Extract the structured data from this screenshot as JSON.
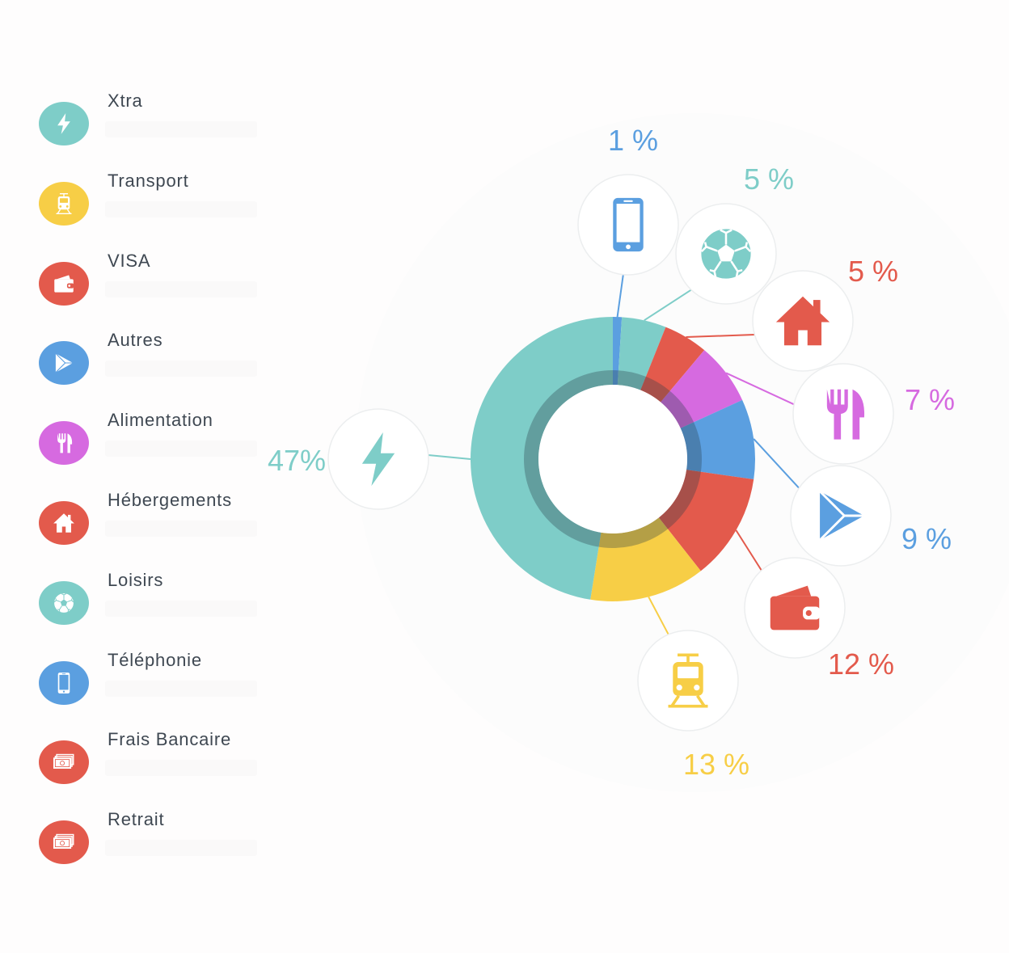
{
  "legend": [
    {
      "label": "Xtra",
      "icon": "bolt-icon",
      "color": "#7ecdc8"
    },
    {
      "label": "Transport",
      "icon": "tram-icon",
      "color": "#f7ce46"
    },
    {
      "label": "VISA",
      "icon": "wallet-icon",
      "color": "#e35a4c"
    },
    {
      "label": "Autres",
      "icon": "play-icon",
      "color": "#5b9fe0"
    },
    {
      "label": "Alimentation",
      "icon": "fork-knife-icon",
      "color": "#d66ae0"
    },
    {
      "label": "Hébergements",
      "icon": "house-icon",
      "color": "#e35a4c"
    },
    {
      "label": "Loisirs",
      "icon": "soccer-ball-icon",
      "color": "#7ecdc8"
    },
    {
      "label": "Téléphonie",
      "icon": "phone-icon",
      "color": "#5b9fe0"
    },
    {
      "label": "Frais Bancaire",
      "icon": "banknotes-icon",
      "color": "#e35a4c"
    },
    {
      "label": "Retrait",
      "icon": "banknotes-icon",
      "color": "#e35a4c"
    }
  ],
  "chart_data": {
    "type": "pie",
    "style": "donut",
    "categories": [
      "Téléphonie",
      "Loisirs",
      "Hébergements",
      "Alimentation",
      "Autres",
      "VISA",
      "Transport",
      "Xtra"
    ],
    "values": [
      1,
      5,
      5,
      7,
      9,
      12,
      13,
      47
    ],
    "labels": [
      "1 %",
      "5 %",
      "5 %",
      "7 %",
      "9 %",
      "12 %",
      "13 %",
      "47%"
    ],
    "icons": [
      "phone-icon",
      "soccer-ball-icon",
      "house-icon",
      "fork-knife-icon",
      "play-icon",
      "wallet-icon",
      "tram-icon",
      "bolt-icon"
    ],
    "colors": [
      "#5b9fe0",
      "#7ecdc8",
      "#e35a4c",
      "#d66ae0",
      "#5b9fe0",
      "#e35a4c",
      "#f7ce46",
      "#7ecdc8"
    ]
  }
}
